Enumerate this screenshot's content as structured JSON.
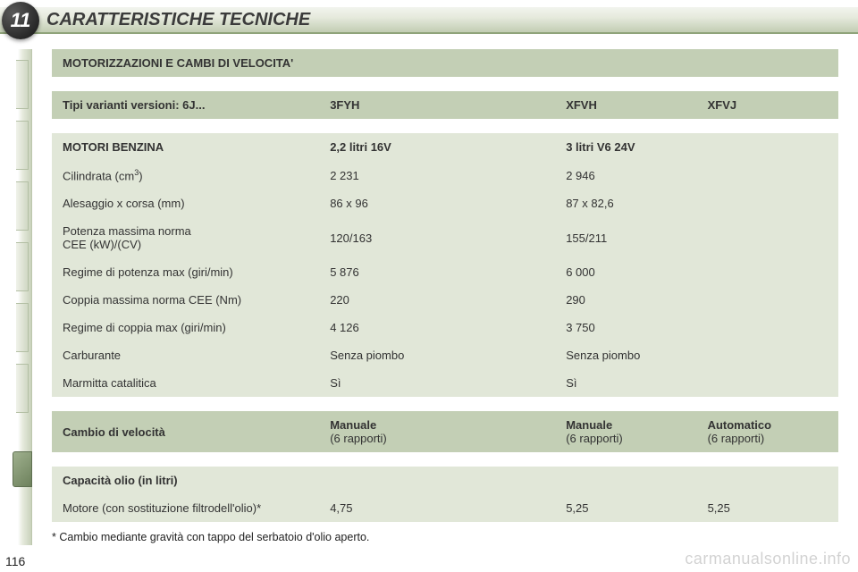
{
  "section_number": "11",
  "header_title": "CARATTERISTICHE TECNICHE",
  "table": {
    "title": "MOTORIZZAZIONI E CAMBI DI VELOCITA'",
    "variants_label": "Tipi varianti versioni: 6J...",
    "variants": {
      "a": "3FYH",
      "b": "XFVH",
      "c": "XFVJ"
    },
    "motori_label": "MOTORI BENZINA",
    "motori": {
      "a": "2,2 litri 16V",
      "bc": "3 litri V6 24V"
    },
    "rows": [
      {
        "label": "Cilindrata (cm",
        "sup": "3",
        "label_after": ")",
        "a": "2 231",
        "bc": "2 946"
      },
      {
        "label": "Alesaggio x corsa (mm)",
        "a": "86 x 96",
        "bc": "87 x 82,6"
      },
      {
        "label": "Potenza massima norma\nCEE (kW)/(CV)",
        "a": "120/163",
        "bc": "155/211"
      },
      {
        "label": "Regime di potenza max (giri/min)",
        "a": "5 876",
        "bc": "6 000"
      },
      {
        "label": "Coppia massima norma CEE (Nm)",
        "a": "220",
        "bc": "290"
      },
      {
        "label": "Regime di coppia max (giri/min)",
        "a": "4 126",
        "bc": "3 750"
      },
      {
        "label": "Carburante",
        "a": "Senza piombo",
        "bc": "Senza piombo"
      },
      {
        "label": "Marmitta catalitica",
        "a": "Sì",
        "bc": "Sì"
      }
    ],
    "cambio_label": "Cambio di velocità",
    "cambio": {
      "a": "Manuale",
      "a_sub": "(6 rapporti)",
      "b": "Manuale",
      "b_sub": "(6 rapporti)",
      "c": "Automatico",
      "c_sub": "(6 rapporti)"
    },
    "cap_label": "Capacità olio (in litri)",
    "cap_row_label": "Motore (con sostituzione filtrodell'olio)*",
    "cap": {
      "a": "4,75",
      "b": "5,25",
      "c": "5,25"
    }
  },
  "footnote": "* Cambio mediante gravità con tappo del serbatoio d'olio aperto.",
  "page_number": "116",
  "watermark": "carmanualsonline.info",
  "colors": {
    "header_bg_top": "#f2f4ee",
    "header_bg_bottom": "#c2cdb3",
    "band_dark": "#c3cfb5",
    "band_light": "#e1e7d8",
    "text": "#333333",
    "rail": "#c9d2bb"
  }
}
